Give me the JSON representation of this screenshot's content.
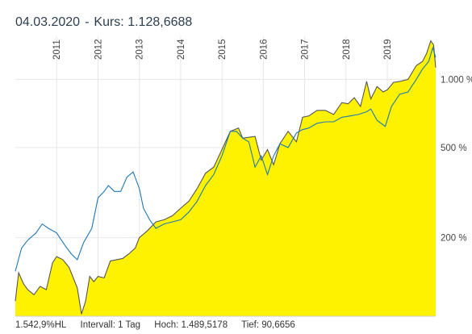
{
  "header": {
    "date": "04.03.2020",
    "separator": "-",
    "kurs_label": "Kurs:",
    "kurs_value": "1.128,6688"
  },
  "footer": {
    "change": "1.542,9%HL",
    "interval": "Intervall: 1 Tag",
    "high": "Hoch: 1.489,5178",
    "low": "Tief: 90,6656"
  },
  "colors": {
    "area_fill": "#fff200",
    "main_line": "#555555",
    "benchmark_line": "#1f78b4",
    "grid": "#e6e6e6"
  },
  "chart_data": {
    "type": "area",
    "scale": "log",
    "ylim": [
      90,
      1550
    ],
    "x_ticks": [
      "2011",
      "2012",
      "2013",
      "2014",
      "2015",
      "2016",
      "2017",
      "2018",
      "2019"
    ],
    "y_ticks": [
      {
        "value": 200,
        "label": "200 %"
      },
      {
        "value": 500,
        "label": "500 %"
      },
      {
        "value": 1000,
        "label": "1.000 %"
      }
    ],
    "series": [
      {
        "key": "main",
        "x": [
          2010.0,
          2010.08,
          2010.2,
          2010.3,
          2010.45,
          2010.6,
          2010.75,
          2010.9,
          2011.0,
          2011.15,
          2011.3,
          2011.5,
          2011.6,
          2011.7,
          2011.8,
          2011.9,
          2012.0,
          2012.15,
          2012.3,
          2012.45,
          2012.6,
          2012.75,
          2012.9,
          2013.0,
          2013.2,
          2013.4,
          2013.6,
          2013.8,
          2014.0,
          2014.2,
          2014.4,
          2014.6,
          2014.8,
          2015.0,
          2015.2,
          2015.4,
          2015.5,
          2015.65,
          2015.8,
          2015.95,
          2016.1,
          2016.25,
          2016.4,
          2016.6,
          2016.8,
          2016.95,
          2017.1,
          2017.3,
          2017.5,
          2017.7,
          2017.9,
          2018.05,
          2018.2,
          2018.35,
          2018.5,
          2018.6,
          2018.75,
          2018.9,
          2019.0,
          2019.15,
          2019.3,
          2019.5,
          2019.7,
          2019.85,
          2019.95,
          2020.05,
          2020.12,
          2020.17
        ],
        "y": [
          105,
          140,
          125,
          118,
          112,
          122,
          118,
          155,
          165,
          160,
          148,
          120,
          92,
          105,
          135,
          128,
          135,
          133,
          158,
          160,
          162,
          170,
          180,
          200,
          215,
          235,
          240,
          250,
          270,
          290,
          330,
          385,
          410,
          490,
          590,
          610,
          550,
          555,
          560,
          440,
          490,
          420,
          520,
          590,
          530,
          680,
          690,
          730,
          730,
          700,
          790,
          780,
          830,
          760,
          980,
          820,
          930,
          880,
          900,
          970,
          980,
          1000,
          1150,
          1200,
          1300,
          1480,
          1420,
          1128
        ]
      },
      {
        "key": "benchmark",
        "x": [
          2010.0,
          2010.15,
          2010.3,
          2010.5,
          2010.65,
          2010.8,
          2011.0,
          2011.2,
          2011.35,
          2011.5,
          2011.65,
          2011.85,
          2012.0,
          2012.15,
          2012.25,
          2012.4,
          2012.55,
          2012.7,
          2012.85,
          2013.0,
          2013.1,
          2013.25,
          2013.4,
          2013.6,
          2013.8,
          2014.0,
          2014.2,
          2014.4,
          2014.6,
          2014.8,
          2015.0,
          2015.2,
          2015.35,
          2015.5,
          2015.65,
          2015.8,
          2015.95,
          2016.1,
          2016.25,
          2016.4,
          2016.6,
          2016.8,
          2016.95,
          2017.1,
          2017.3,
          2017.5,
          2017.7,
          2017.9,
          2018.1,
          2018.3,
          2018.5,
          2018.6,
          2018.75,
          2018.95,
          2019.1,
          2019.3,
          2019.5,
          2019.7,
          2019.85,
          2020.0,
          2020.1,
          2020.17
        ],
        "y": [
          142,
          180,
          195,
          210,
          230,
          220,
          210,
          185,
          170,
          160,
          190,
          220,
          300,
          320,
          340,
          320,
          320,
          370,
          390,
          330,
          270,
          240,
          220,
          230,
          235,
          240,
          260,
          290,
          340,
          380,
          460,
          590,
          590,
          550,
          530,
          410,
          460,
          380,
          460,
          520,
          500,
          580,
          600,
          610,
          640,
          650,
          650,
          680,
          690,
          700,
          720,
          740,
          660,
          620,
          760,
          860,
          880,
          1000,
          1110,
          1200,
          1380,
          1250
        ]
      }
    ]
  }
}
